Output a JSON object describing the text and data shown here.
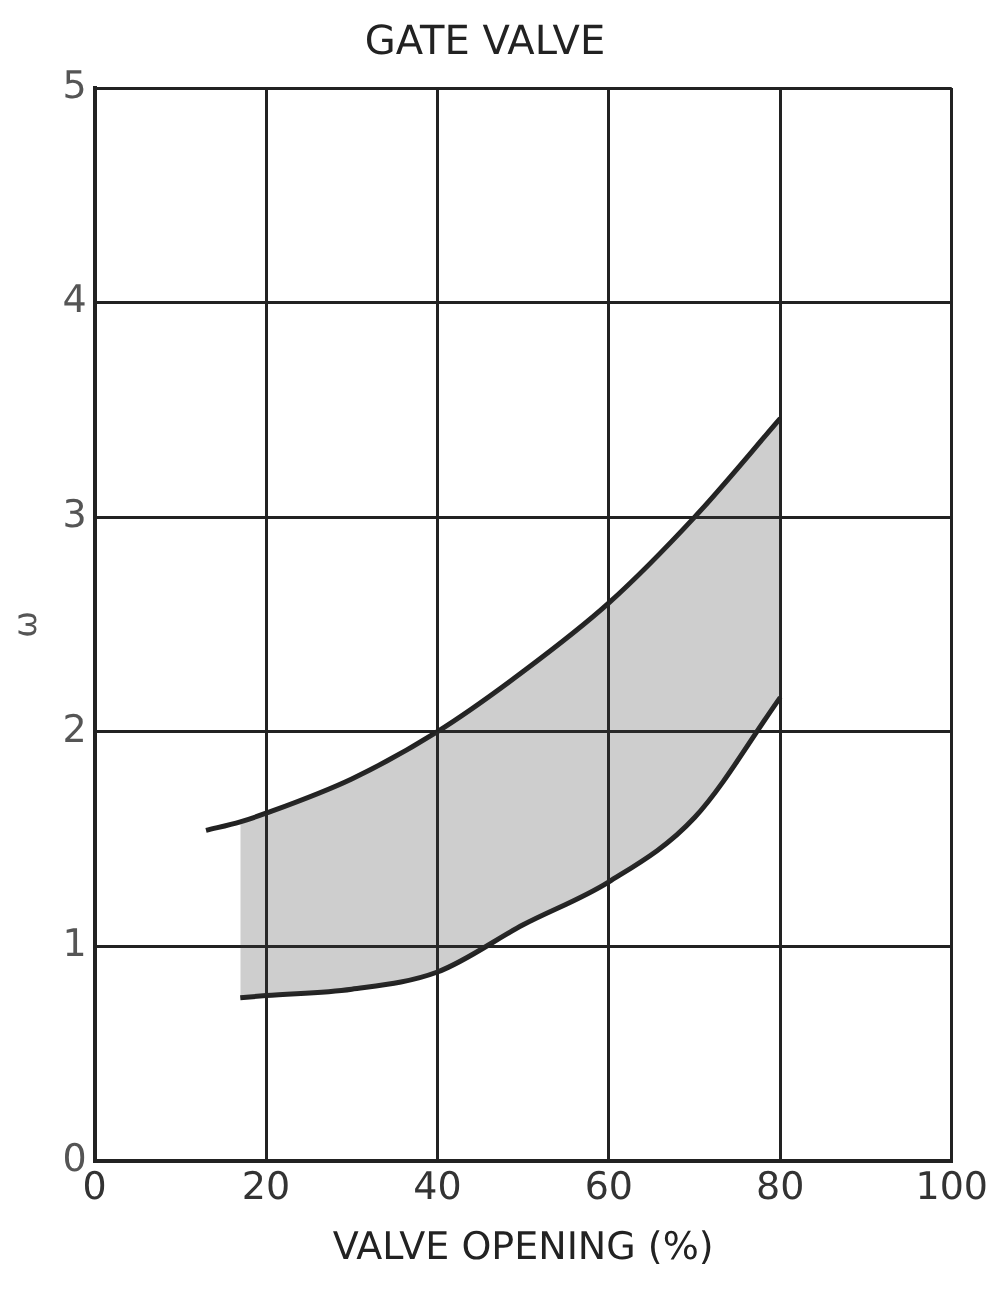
{
  "chart_data": {
    "type": "line",
    "title": "GATE VALVE",
    "xlabel": "VALVE OPENING (%)",
    "ylabel": "ω",
    "series": [
      {
        "color": "#222222",
        "x": [
          13,
          17,
          20,
          30,
          40,
          50,
          60,
          70,
          80
        ],
        "values": [
          1.54,
          1.58,
          1.62,
          1.78,
          2.0,
          2.28,
          2.6,
          3.0,
          3.46
        ],
        "lower": [
          null,
          0.76,
          0.77,
          0.8,
          0.88,
          1.1,
          1.3,
          1.6,
          2.16
        ],
        "upper": [
          null,
          1.58,
          1.62,
          1.78,
          2.0,
          2.28,
          2.6,
          3.0,
          3.46
        ]
      },
      {
        "color": "#222222",
        "x": [
          17,
          20,
          30,
          40,
          50,
          60,
          70,
          80
        ],
        "values": [
          0.76,
          0.77,
          0.8,
          0.88,
          1.1,
          1.3,
          1.6,
          2.16
        ]
      }
    ],
    "xlim": [
      0,
      100
    ],
    "xticks": [
      0,
      20,
      40,
      60,
      80,
      100
    ],
    "ylim": [
      0,
      5
    ],
    "yticks": [
      0,
      1,
      2,
      3,
      4,
      5
    ],
    "grid": true,
    "legend": false
  }
}
